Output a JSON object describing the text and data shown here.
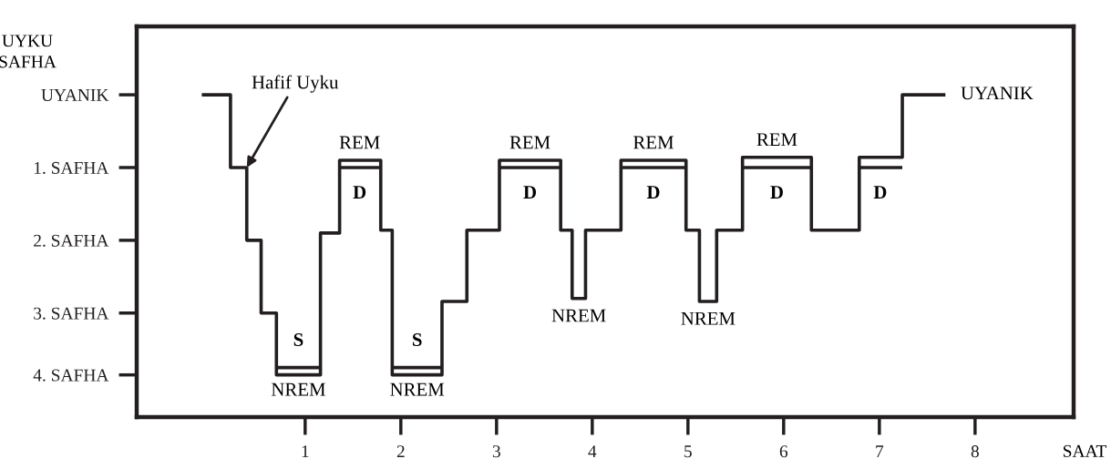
{
  "chart_data": {
    "type": "step",
    "ylabel": "UYKU\nSAFHA",
    "xlabel": "SAAT",
    "xlim": [
      -0.76,
      9.03
    ],
    "ylim": [
      4.43,
      -0.94
    ],
    "xticks": [
      1,
      2,
      3,
      4,
      5,
      6,
      7,
      8
    ],
    "yticks": [
      {
        "value": 0,
        "label": "UYANIK"
      },
      {
        "value": 1,
        "label": "1. SAFHA"
      },
      {
        "value": 2,
        "label": "2. SAFHA"
      },
      {
        "value": 3,
        "label": "3. SAFHA"
      },
      {
        "value": 3.85,
        "label": "4. SAFHA"
      }
    ],
    "grid": false,
    "legend": false,
    "series": [
      {
        "color": "#231f20",
        "x": [
          -0.08,
          0.22,
          0.39,
          0.54,
          0.7,
          1.16,
          1.36,
          1.79,
          1.91,
          2.43,
          2.69,
          3.03,
          3.67,
          3.79,
          3.93,
          4.3,
          4.98,
          5.12,
          5.3,
          5.57,
          6.29,
          6.79,
          7.24,
          7.69
        ],
        "values": [
          0,
          1,
          2,
          3,
          3.85,
          1.9,
          0.9,
          1.86,
          3.85,
          2.84,
          1.86,
          0.9,
          1.86,
          2.8,
          1.86,
          0.9,
          1.86,
          2.84,
          1.86,
          0.86,
          1.86,
          0.86,
          0,
          0
        ]
      },
      {
        "color": "#231f20",
        "type": "line",
        "x": [
          0.7,
          1.16,
          null,
          1.36,
          1.79,
          null,
          1.91,
          2.43,
          null,
          3.03,
          3.67,
          null,
          4.3,
          4.98,
          null,
          5.57,
          6.29,
          null,
          6.79,
          7.24
        ],
        "values": [
          3.75,
          3.75,
          null,
          1,
          1,
          null,
          3.75,
          3.75,
          null,
          1,
          1,
          null,
          1,
          1,
          null,
          1,
          1,
          null,
          1,
          1
        ]
      }
    ],
    "annotations": [
      {
        "text": "Hafif Uyku",
        "x": 0.39,
        "y": 1
      },
      {
        "text": "REM",
        "x": 1.57,
        "y": 0.9
      },
      {
        "text": "D",
        "x": 1.57,
        "y": 1
      },
      {
        "text": "S",
        "x": 0.93,
        "y": 3.75
      },
      {
        "text": "NREM",
        "x": 0.93,
        "y": 3.85
      },
      {
        "text": "S",
        "x": 2.17,
        "y": 3.75
      },
      {
        "text": "NREM",
        "x": 2.17,
        "y": 3.85
      },
      {
        "text": "REM",
        "x": 3.35,
        "y": 0.9
      },
      {
        "text": "D",
        "x": 3.35,
        "y": 1
      },
      {
        "text": "NREM",
        "x": 3.86,
        "y": 2.8
      },
      {
        "text": "REM",
        "x": 4.64,
        "y": 0.9
      },
      {
        "text": "D",
        "x": 4.64,
        "y": 1
      },
      {
        "text": "NREM",
        "x": 5.21,
        "y": 2.84
      },
      {
        "text": "REM",
        "x": 5.93,
        "y": 0.86
      },
      {
        "text": "D",
        "x": 5.93,
        "y": 1
      },
      {
        "text": "D",
        "x": 7.01,
        "y": 1
      },
      {
        "text": "UYANIK",
        "x": 7.69,
        "y": 0
      }
    ]
  }
}
